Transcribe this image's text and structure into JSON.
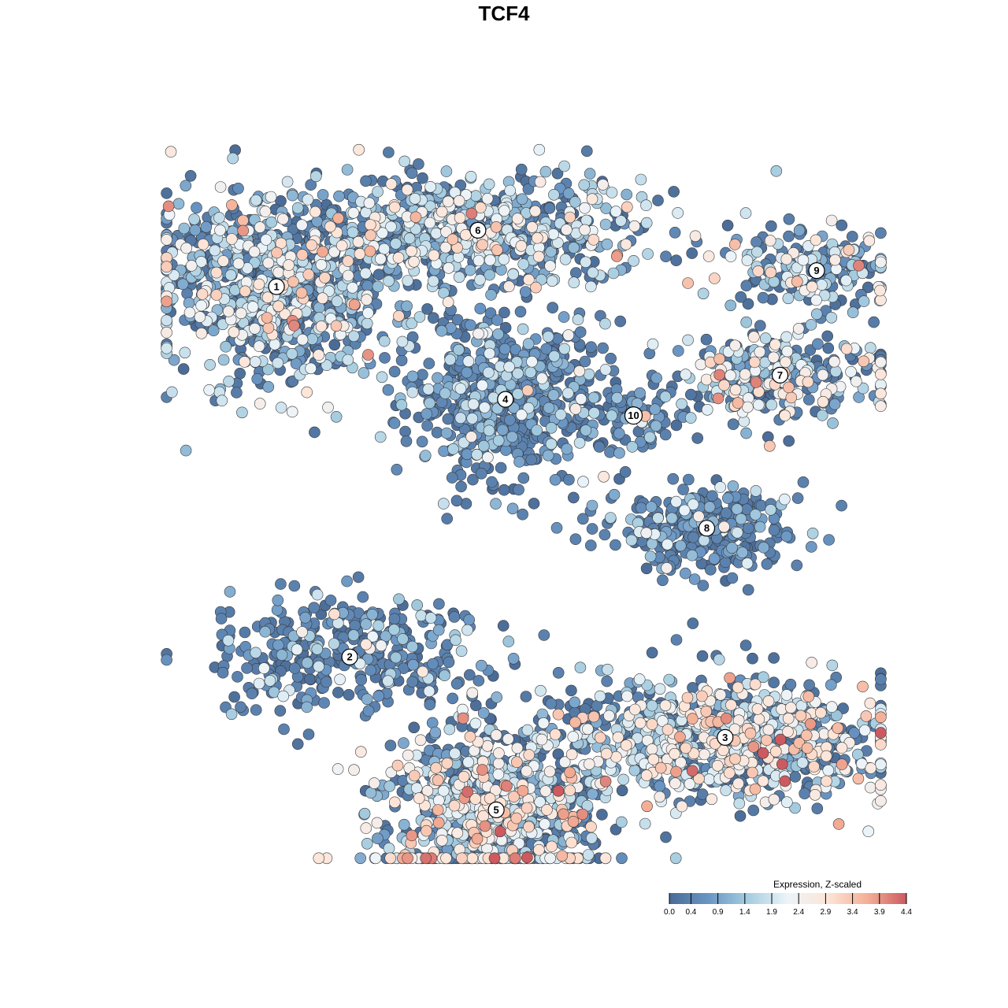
{
  "chart_data": {
    "type": "scatter",
    "title": "TCF4",
    "xlabel": "",
    "ylabel": "",
    "x_range": [
      -40,
      40
    ],
    "y_range": [
      -45,
      45
    ],
    "grid": false,
    "colorbar": {
      "title": "Expression, Z-scaled",
      "min": 0.0,
      "max": 4.4,
      "ticks": [
        0.0,
        0.4,
        0.9,
        1.4,
        1.9,
        2.4,
        2.9,
        3.4,
        3.9,
        4.4
      ],
      "tick_labels": [
        "0.0",
        "0.4",
        "0.9",
        "1.4",
        "1.9",
        "2.4",
        "2.9",
        "3.4",
        "3.9",
        "4.4"
      ],
      "colors": [
        "#4a6b96",
        "#6a96c4",
        "#a6cde0",
        "#ecf4f9",
        "#fde5d8",
        "#f4b097",
        "#cc5a60"
      ],
      "placement": "bottom-right"
    },
    "clusters": [
      {
        "label": "1",
        "x": -27.0,
        "y": 27.0,
        "sx": 9.5,
        "sy": 7.5,
        "n": 900,
        "mean_expr": 1.5
      },
      {
        "label": "6",
        "x": -5.0,
        "y": 34.0,
        "sx": 12.0,
        "sy": 4.5,
        "n": 700,
        "mean_expr": 1.5
      },
      {
        "label": "4",
        "x": -2.0,
        "y": 13.0,
        "sx": 7.0,
        "sy": 6.5,
        "n": 650,
        "mean_expr": 0.6
      },
      {
        "label": "10",
        "x": 12.0,
        "y": 11.0,
        "sx": 3.0,
        "sy": 3.0,
        "n": 60,
        "mean_expr": 0.5
      },
      {
        "label": "9",
        "x": 32.0,
        "y": 29.0,
        "sx": 6.5,
        "sy": 3.5,
        "n": 180,
        "mean_expr": 1.6
      },
      {
        "label": "7",
        "x": 28.0,
        "y": 16.0,
        "sx": 9.0,
        "sy": 4.0,
        "n": 300,
        "mean_expr": 1.8
      },
      {
        "label": "8",
        "x": 20.0,
        "y": -3.0,
        "sx": 7.0,
        "sy": 3.5,
        "n": 300,
        "mean_expr": 0.4
      },
      {
        "label": "2",
        "x": -19.0,
        "y": -19.0,
        "sx": 10.0,
        "sy": 5.0,
        "n": 350,
        "mean_expr": 0.5
      },
      {
        "label": "3",
        "x": 22.0,
        "y": -29.0,
        "sx": 11.0,
        "sy": 5.0,
        "n": 900,
        "mean_expr": 1.9
      },
      {
        "label": "5",
        "x": -3.0,
        "y": -38.0,
        "sx": 8.0,
        "sy": 7.0,
        "n": 950,
        "mean_expr": 1.9
      }
    ]
  }
}
